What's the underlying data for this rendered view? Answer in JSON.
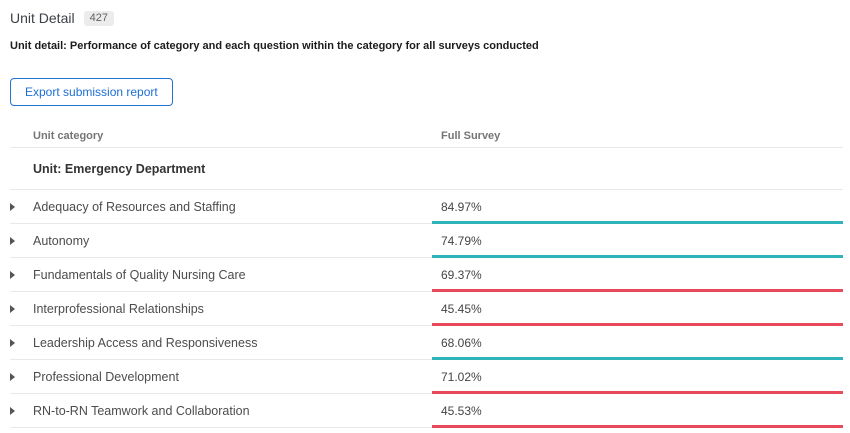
{
  "page": {
    "title": "Unit Detail",
    "badge": "427",
    "subtitle": "Unit detail: Performance of category and each question within the category for all surveys conducted",
    "export_button_label": "Export submission report"
  },
  "colors": {
    "good": "#2db3b9",
    "bad": "#e8495b",
    "accent_blue": "#1d6fd1"
  },
  "table": {
    "columns": {
      "category": "Unit category",
      "survey": "Full Survey"
    },
    "group_label": "Unit: Emergency Department",
    "rows": [
      {
        "label": "Adequacy of Resources and Staffing",
        "value": "84.97%",
        "status": "good"
      },
      {
        "label": "Autonomy",
        "value": "74.79%",
        "status": "good"
      },
      {
        "label": "Fundamentals of Quality Nursing Care",
        "value": "69.37%",
        "status": "bad"
      },
      {
        "label": "Interprofessional Relationships",
        "value": "45.45%",
        "status": "bad"
      },
      {
        "label": "Leadership Access and Responsiveness",
        "value": "68.06%",
        "status": "good"
      },
      {
        "label": "Professional Development",
        "value": "71.02%",
        "status": "bad"
      },
      {
        "label": "RN-to-RN Teamwork and Collaboration",
        "value": "45.53%",
        "status": "bad"
      }
    ]
  }
}
